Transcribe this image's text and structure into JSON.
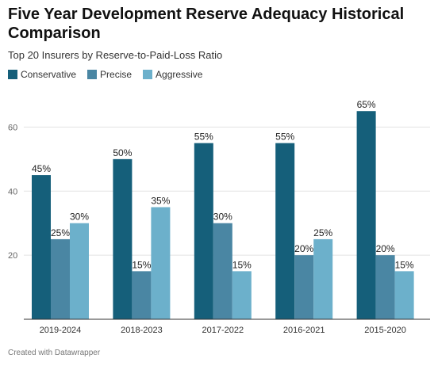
{
  "title": "Five Year Development Reserve Adequacy Historical Comparison",
  "subtitle": "Top 20 Insurers by Reserve-to-Paid-Loss Ratio",
  "footer": "Created with Datawrapper",
  "colors": {
    "Conservative": "#155f7a",
    "Precise": "#4a86a3",
    "Aggressive": "#6cb0cb",
    "grid": "#e3e3e3",
    "axis": "#333333"
  },
  "chart_data": {
    "type": "bar",
    "title": "Five Year Development Reserve Adequacy Historical Comparison",
    "subtitle": "Top 20 Insurers by Reserve-to-Paid-Loss Ratio",
    "categories": [
      "2019-2024",
      "2018-2023",
      "2017-2022",
      "2016-2021",
      "2015-2020"
    ],
    "series": [
      {
        "name": "Conservative",
        "values": [
          45,
          50,
          55,
          55,
          65
        ]
      },
      {
        "name": "Precise",
        "values": [
          25,
          15,
          30,
          20,
          20
        ]
      },
      {
        "name": "Aggressive",
        "values": [
          30,
          35,
          15,
          25,
          15
        ]
      }
    ],
    "data_labels": [
      [
        "45%",
        "25%",
        "30%"
      ],
      [
        "50%",
        "15%",
        "35%"
      ],
      [
        "55%",
        "30%",
        "15%"
      ],
      [
        "55%",
        "20%",
        "25%"
      ],
      [
        "65%",
        "20%",
        "15%"
      ]
    ],
    "yticks": [
      20,
      40,
      60
    ],
    "ytick_labels": [
      "20",
      "40",
      "60"
    ],
    "ylim": [
      0,
      70
    ],
    "grid": true,
    "legend_position": "top-left"
  }
}
